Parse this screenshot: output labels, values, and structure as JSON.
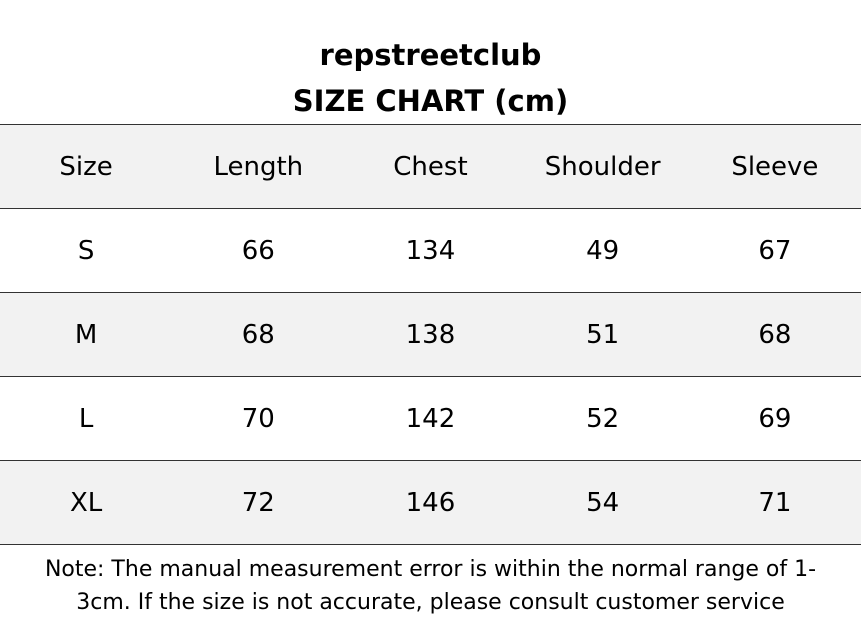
{
  "header": {
    "title": "repstreetclub",
    "subtitle": "SIZE CHART  (cm)"
  },
  "table": {
    "columns": [
      "Size",
      "Length",
      "Chest",
      "Shoulder",
      "Sleeve"
    ],
    "rows": [
      [
        "S",
        "66",
        "134",
        "49",
        "67"
      ],
      [
        "M",
        "68",
        "138",
        "51",
        "68"
      ],
      [
        "L",
        "70",
        "142",
        "52",
        "69"
      ],
      [
        "XL",
        "72",
        "146",
        "54",
        "71"
      ]
    ]
  },
  "note": "Note: The manual measurement error is within the normal range of 1-3cm. If the size is not accurate, please consult customer service"
}
